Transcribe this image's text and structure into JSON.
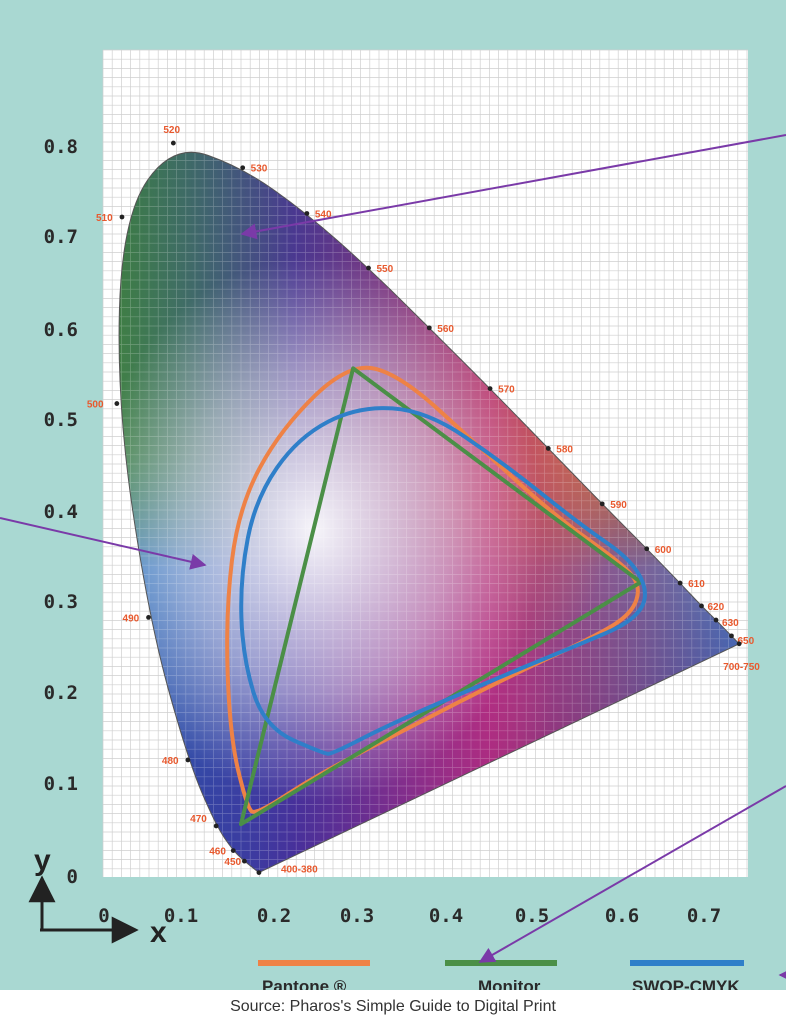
{
  "chart_data": {
    "type": "scatter",
    "subtype": "cie-chromaticity-diagram",
    "xlabel": "x",
    "ylabel": "y",
    "xlim": [
      0,
      0.75
    ],
    "ylim": [
      0,
      0.85
    ],
    "x_ticks": [
      "0",
      "0.1",
      "0.2",
      "0.3",
      "0.4",
      "0.5",
      "0.6",
      "0.7"
    ],
    "y_ticks": [
      "0",
      "0.1",
      "0.2",
      "0.3",
      "0.4",
      "0.5",
      "0.6",
      "0.7",
      "0.8"
    ],
    "grid": true,
    "spectral_locus": [
      {
        "label": "450",
        "x": 0.157,
        "y": 0.018
      },
      {
        "label": "460",
        "x": 0.144,
        "y": 0.03
      },
      {
        "label": "470",
        "x": 0.124,
        "y": 0.058
      },
      {
        "label": "480",
        "x": 0.091,
        "y": 0.133
      },
      {
        "label": "490",
        "x": 0.045,
        "y": 0.295
      },
      {
        "label": "500",
        "x": 0.008,
        "y": 0.538
      },
      {
        "label": "510",
        "x": 0.014,
        "y": 0.75
      },
      {
        "label": "520",
        "x": 0.074,
        "y": 0.834
      },
      {
        "label": "530",
        "x": 0.155,
        "y": 0.806
      },
      {
        "label": "540",
        "x": 0.23,
        "y": 0.754
      },
      {
        "label": "550",
        "x": 0.302,
        "y": 0.692
      },
      {
        "label": "560",
        "x": 0.373,
        "y": 0.624
      },
      {
        "label": "570",
        "x": 0.444,
        "y": 0.555
      },
      {
        "label": "580",
        "x": 0.512,
        "y": 0.487
      },
      {
        "label": "590",
        "x": 0.575,
        "y": 0.424
      },
      {
        "label": "600",
        "x": 0.627,
        "y": 0.373
      },
      {
        "label": "610",
        "x": 0.666,
        "y": 0.334
      },
      {
        "label": "620",
        "x": 0.691,
        "y": 0.308
      },
      {
        "label": "630",
        "x": 0.708,
        "y": 0.292
      },
      {
        "label": "650",
        "x": 0.726,
        "y": 0.274
      },
      {
        "label": "700-750",
        "x": 0.735,
        "y": 0.265
      },
      {
        "label": "400-380",
        "x": 0.174,
        "y": 0.005
      }
    ],
    "series": [
      {
        "name": "Pantone ®",
        "color": "#ee8246",
        "points": [
          [
            0.16,
            0.08
          ],
          [
            0.14,
            0.16
          ],
          [
            0.135,
            0.3
          ],
          [
            0.15,
            0.42
          ],
          [
            0.2,
            0.51
          ],
          [
            0.28,
            0.585
          ],
          [
            0.34,
            0.57
          ],
          [
            0.43,
            0.49
          ],
          [
            0.52,
            0.41
          ],
          [
            0.6,
            0.355
          ],
          [
            0.62,
            0.33
          ],
          [
            0.61,
            0.3
          ],
          [
            0.57,
            0.275
          ],
          [
            0.46,
            0.225
          ],
          [
            0.35,
            0.17
          ],
          [
            0.24,
            0.115
          ],
          [
            0.17,
            0.07
          ]
        ]
      },
      {
        "name": "Monitor",
        "color": "#4b8f47",
        "points": [
          [
            0.284,
            0.578
          ],
          [
            0.62,
            0.335
          ],
          [
            0.153,
            0.06
          ]
        ]
      },
      {
        "name": "SWOP-CMYK",
        "color": "#2f7fc9",
        "points": [
          [
            0.25,
            0.14
          ],
          [
            0.18,
            0.17
          ],
          [
            0.155,
            0.25
          ],
          [
            0.152,
            0.34
          ],
          [
            0.17,
            0.43
          ],
          [
            0.22,
            0.5
          ],
          [
            0.29,
            0.535
          ],
          [
            0.37,
            0.53
          ],
          [
            0.46,
            0.47
          ],
          [
            0.55,
            0.4
          ],
          [
            0.61,
            0.36
          ],
          [
            0.63,
            0.32
          ],
          [
            0.61,
            0.29
          ],
          [
            0.55,
            0.265
          ],
          [
            0.45,
            0.225
          ],
          [
            0.33,
            0.175
          ],
          [
            0.26,
            0.14
          ]
        ]
      }
    ]
  },
  "legend": {
    "items": [
      {
        "label": "Pantone ®",
        "color": "#ee8246"
      },
      {
        "label": "Monitor",
        "color": "#4b8f47"
      },
      {
        "label": "SWOP-CMYK",
        "color": "#2f7fc9"
      }
    ]
  },
  "annotations": {
    "arrow_color": "#7a3aa8"
  },
  "caption": {
    "text": "Source: Pharos's Simple Guide to Digital Print"
  }
}
